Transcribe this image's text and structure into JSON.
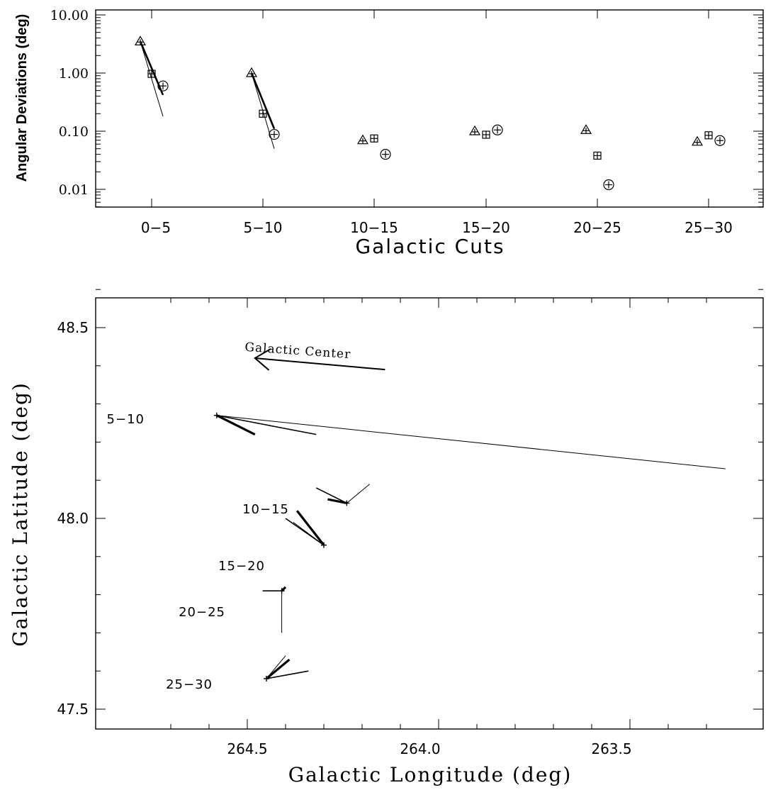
{
  "chart_data": [
    {
      "type": "scatter",
      "title": "",
      "xlabel": "Galactic Cuts",
      "ylabel": "Angular Deviations (deg)",
      "yscale": "log",
      "ylim": [
        0.005,
        12
      ],
      "yticks": [
        "10.00",
        "1.00",
        "0.10",
        "0.01"
      ],
      "categories": [
        "0−5",
        "5−10",
        "10−15",
        "15−20",
        "20−25",
        "25−30"
      ],
      "series": [
        {
          "marker": "triangle",
          "values": [
            3.5,
            1.0,
            0.07,
            0.1,
            0.105,
            0.066
          ]
        },
        {
          "marker": "square",
          "values": [
            0.97,
            0.2,
            0.075,
            0.087,
            0.038,
            0.085
          ]
        },
        {
          "marker": "circle",
          "values": [
            0.6,
            0.088,
            0.04,
            0.105,
            0.012,
            0.069
          ]
        }
      ],
      "trend_lines": [
        {
          "category": "0−5",
          "style": "thin",
          "from": 3.5,
          "to": 0.18
        },
        {
          "category": "0−5",
          "style": "thick",
          "from": 3.5,
          "to": 0.42
        },
        {
          "category": "5−10",
          "style": "thin",
          "from": 1.0,
          "to": 0.05
        },
        {
          "category": "5−10",
          "style": "thick",
          "from": 1.0,
          "to": 0.11
        }
      ]
    },
    {
      "type": "vector",
      "title": "",
      "xlabel": "Galactic Longitude (deg)",
      "ylabel": "Galactic Latitude (deg)",
      "xlim": [
        264.75,
        263.2
      ],
      "ylim": [
        47.45,
        48.65
      ],
      "xticks": [
        "264.5",
        "264.0",
        "263.5"
      ],
      "yticks": [
        "48.5",
        "48.0",
        "47.5"
      ],
      "annotation": {
        "text": "Galactic Center",
        "arrow_from": [
          264.14,
          48.39
        ],
        "arrow_to": [
          264.48,
          48.42
        ]
      },
      "groups": [
        {
          "label": "5−10",
          "origin": [
            264.58,
            48.27
          ],
          "vectors": [
            {
              "to": [
                264.48,
                48.22
              ],
              "style": "thick"
            },
            {
              "to": [
                264.32,
                48.22
              ],
              "style": "medium"
            },
            {
              "to": [
                263.25,
                48.13
              ],
              "style": "thin"
            }
          ]
        },
        {
          "label": "10−15",
          "origin": [
            264.24,
            48.04
          ],
          "vectors": [
            {
              "to": [
                264.29,
                48.05
              ],
              "style": "thick"
            },
            {
              "to": [
                264.32,
                48.08
              ],
              "style": "medium"
            },
            {
              "to": [
                264.18,
                48.09
              ],
              "style": "thin"
            }
          ]
        },
        {
          "label": "15−20",
          "origin": [
            264.3,
            47.93
          ],
          "vectors": [
            {
              "to": [
                264.37,
                48.02
              ],
              "style": "thick"
            },
            {
              "to": [
                264.4,
                48.0
              ],
              "style": "medium"
            },
            {
              "to": [
                264.38,
                47.99
              ],
              "style": "thin"
            }
          ]
        },
        {
          "label": "20−25",
          "origin": [
            264.41,
            47.81
          ],
          "vectors": [
            {
              "to": [
                264.4,
                47.82
              ],
              "style": "thick"
            },
            {
              "to": [
                264.46,
                47.81
              ],
              "style": "medium"
            },
            {
              "to": [
                264.41,
                47.7
              ],
              "style": "thin"
            }
          ]
        },
        {
          "label": "25−30",
          "origin": [
            264.45,
            47.58
          ],
          "vectors": [
            {
              "to": [
                264.39,
                47.63
              ],
              "style": "thick"
            },
            {
              "to": [
                264.34,
                47.6
              ],
              "style": "medium"
            },
            {
              "to": [
                264.4,
                47.64
              ],
              "style": "thin"
            }
          ]
        }
      ]
    }
  ]
}
